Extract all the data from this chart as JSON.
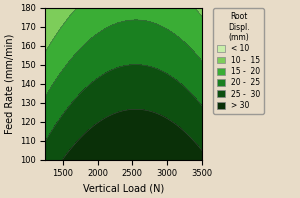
{
  "title": "",
  "xlabel": "Vertical Load (N)",
  "ylabel": "Feed Rate (mm/min)",
  "xlim": [
    1250,
    3500
  ],
  "ylim": [
    100,
    180
  ],
  "xticks": [
    1500,
    2000,
    2500,
    3000,
    3500
  ],
  "yticks": [
    100,
    110,
    120,
    130,
    140,
    150,
    160,
    170,
    180
  ],
  "legend_title": "Root\nDispl.\n(mm)",
  "legend_labels": [
    "< 10",
    "10 -  15",
    "15 -  20",
    "20 -  25",
    "25 -  30",
    "> 30"
  ],
  "contour_levels": [
    10,
    15,
    20,
    25,
    30
  ],
  "colors": [
    "#c8eeaa",
    "#7dcd5a",
    "#3aad35",
    "#1a8020",
    "#0d5010",
    "#0a3008"
  ],
  "background_color": "#e8dcc8",
  "axes_background": "#e8dcc8",
  "legend_colors": [
    "#c8eeaa",
    "#7dcd5a",
    "#3aad35",
    "#1a8020",
    "#0d5010",
    "#0a3008"
  ]
}
